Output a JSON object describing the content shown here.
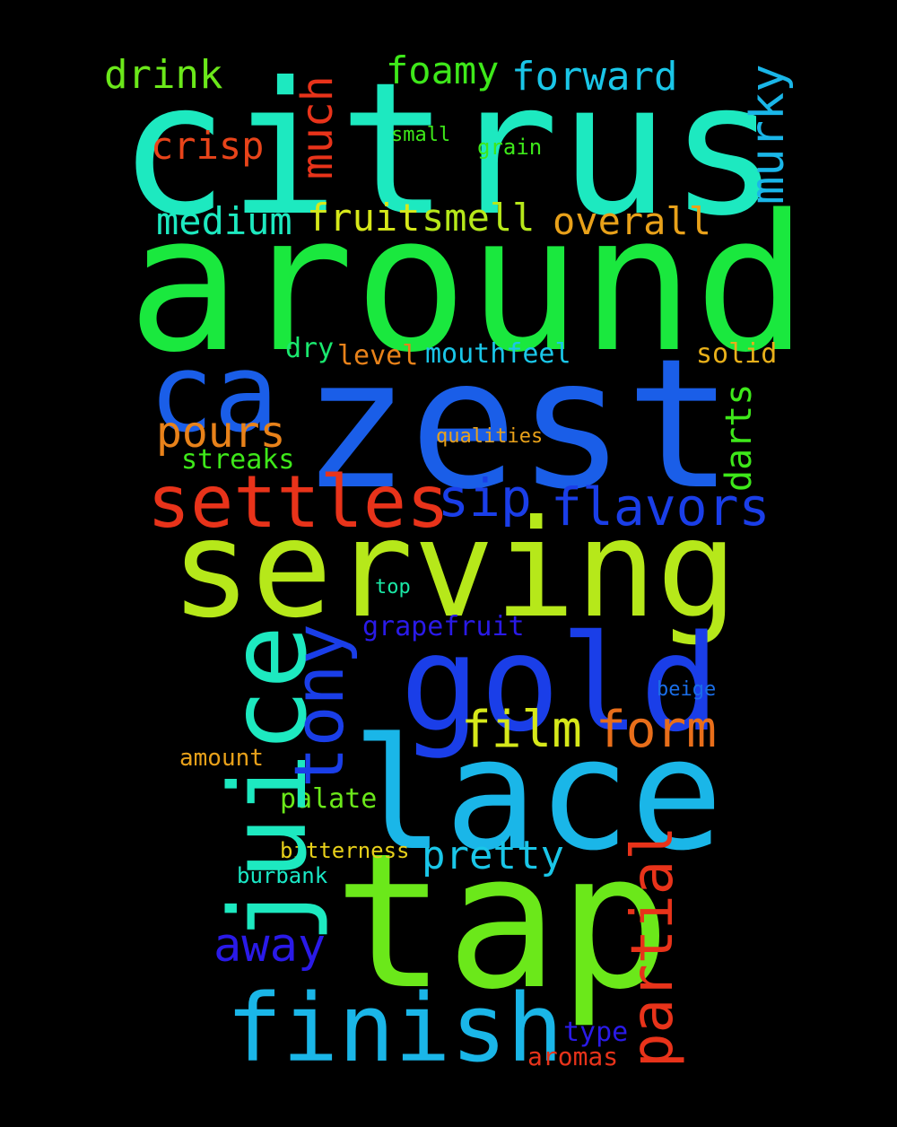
{
  "words": [
    {
      "text": "citrus",
      "color": "#1de9c0"
    },
    {
      "text": "around",
      "color": "#1ae83e"
    },
    {
      "text": "zest",
      "color": "#1a5ee8"
    },
    {
      "text": "serving",
      "color": "#b6e81a"
    },
    {
      "text": "tap",
      "color": "#6be81a"
    },
    {
      "text": "lace",
      "color": "#1ab6e8"
    },
    {
      "text": "gold",
      "color": "#1a3ee8"
    },
    {
      "text": "ca",
      "color": "#1a5ee8"
    },
    {
      "text": "juice",
      "color": "#1de9c0"
    },
    {
      "text": "finish",
      "color": "#1ab6e8"
    },
    {
      "text": "settles",
      "color": "#e8331a"
    },
    {
      "text": "tony",
      "color": "#1a3ee8"
    },
    {
      "text": "partial",
      "color": "#e8331a"
    },
    {
      "text": "form",
      "color": "#e86e1a"
    },
    {
      "text": "flavors",
      "color": "#1a3ee8"
    },
    {
      "text": "film",
      "color": "#d6e81a"
    },
    {
      "text": "sip",
      "color": "#1a3ee8"
    },
    {
      "text": "pours",
      "color": "#e8821a"
    },
    {
      "text": "away",
      "color": "#2a1ae8"
    },
    {
      "text": "pretty",
      "color": "#1ac6e8"
    },
    {
      "text": "murky",
      "color": "#1ab6e8"
    },
    {
      "text": "forward",
      "color": "#1ac6e8"
    },
    {
      "text": "much",
      "color": "#e8331a"
    },
    {
      "text": "drink",
      "color": "#6be81a"
    },
    {
      "text": "foamy",
      "color": "#3ee81a"
    },
    {
      "text": "crisp",
      "color": "#e8441a"
    },
    {
      "text": "medium",
      "color": "#1de9c0"
    },
    {
      "text": "fruit",
      "color": "#d6e81a"
    },
    {
      "text": "smell",
      "color": "#b6e81a"
    },
    {
      "text": "overall",
      "color": "#e8a11a"
    },
    {
      "text": "darts",
      "color": "#3ee81a"
    },
    {
      "text": "mouthfeel",
      "color": "#1ac6e8"
    },
    {
      "text": "level",
      "color": "#e8821a"
    },
    {
      "text": "dry",
      "color": "#1ae86e"
    },
    {
      "text": "solid",
      "color": "#e8b01a"
    },
    {
      "text": "streaks",
      "color": "#3ee81a"
    },
    {
      "text": "qualities",
      "color": "#e8a11a"
    },
    {
      "text": "grapefruit",
      "color": "#2a1ae8"
    },
    {
      "text": "top",
      "color": "#1ae8a6"
    },
    {
      "text": "beige",
      "color": "#1a6ee8"
    },
    {
      "text": "amount",
      "color": "#e8a11a"
    },
    {
      "text": "palate",
      "color": "#6be81a"
    },
    {
      "text": "bitterness",
      "color": "#e8d01a"
    },
    {
      "text": "burbank",
      "color": "#1ae8c6"
    },
    {
      "text": "type",
      "color": "#2a1ae8"
    },
    {
      "text": "aromas",
      "color": "#e8331a"
    },
    {
      "text": "small",
      "color": "#3ee81a"
    },
    {
      "text": "grain",
      "color": "#3ee81a"
    }
  ]
}
